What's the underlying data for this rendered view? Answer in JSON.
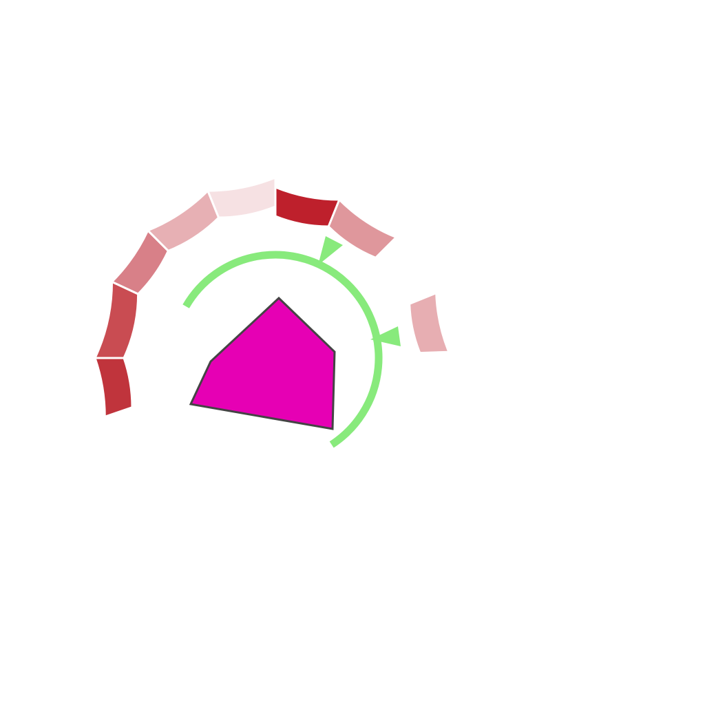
{
  "colors": {
    "background": "#ffffff",
    "player_fill": "#e600b4",
    "player_outline": "#444444",
    "range_ring": "#88ea7c",
    "range_marker": "#88ea7c",
    "segment_palette": [
      "#c0343c",
      "#c94c52",
      "#d88088",
      "#e7b0b4",
      "#f6e1e3",
      "#be202c",
      "#df979c",
      "#e7aeb2"
    ]
  },
  "player": {
    "icon": "pentagon-ship-icon"
  },
  "ring_segments": [
    {
      "id": "segment-1",
      "intensity": 0.85,
      "color": "#c0343c"
    },
    {
      "id": "segment-2",
      "intensity": 0.78,
      "color": "#c94c52"
    },
    {
      "id": "segment-3",
      "intensity": 0.55,
      "color": "#d88088"
    },
    {
      "id": "segment-4",
      "intensity": 0.35,
      "color": "#e7b0b4"
    },
    {
      "id": "segment-5",
      "intensity": 0.12,
      "color": "#f6e1e3"
    },
    {
      "id": "segment-6",
      "intensity": 0.95,
      "color": "#be202c"
    },
    {
      "id": "segment-7",
      "intensity": 0.45,
      "color": "#df979c"
    },
    {
      "id": "segment-8",
      "intensity": 0.36,
      "color": "#e7aeb2"
    }
  ],
  "range_markers": [
    {
      "id": "marker-top",
      "icon": "triangle-pointer-icon"
    },
    {
      "id": "marker-right",
      "icon": "triangle-pointer-icon"
    }
  ]
}
